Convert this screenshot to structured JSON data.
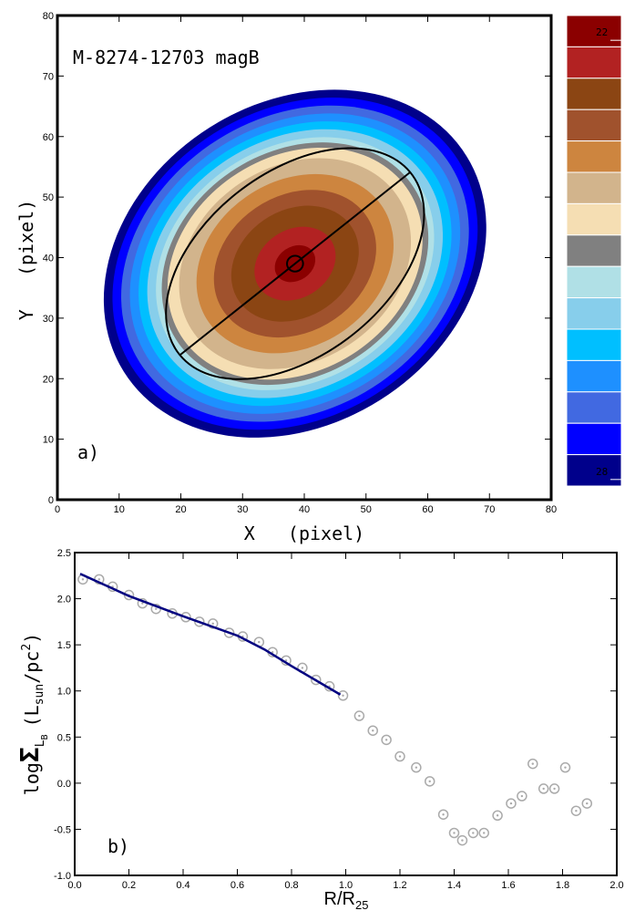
{
  "chart_data": [
    {
      "type": "image",
      "title": "M-8274-12703   magB",
      "annotation": "a)",
      "xlabel": "X   (pixel)",
      "ylabel": "Y   (pixel)",
      "xlim": [
        0,
        80
      ],
      "ylim": [
        0,
        80
      ],
      "xticks": [
        0,
        10,
        20,
        30,
        40,
        50,
        60,
        70,
        80
      ],
      "yticks": [
        0,
        10,
        20,
        30,
        40,
        50,
        60,
        70,
        80
      ],
      "colorbar": {
        "colors": [
          "#8b0000",
          "#b22222",
          "#8b4513",
          "#a0522d",
          "#cd853f",
          "#d2b48c",
          "#f5deb3",
          "#808080",
          "#b0e0e6",
          "#87ceeb",
          "#00bfff",
          "#1e90ff",
          "#4169e1",
          "#0000ff",
          "#00008b"
        ],
        "clim": [
          21.786,
          28.214
        ],
        "ticks": [
          22,
          28
        ]
      },
      "isophotes": {
        "center": [
          38.5,
          39
        ],
        "angle": 35,
        "axis_ratio": 0.8,
        "a": [
          3.5,
          7,
          11,
          14,
          17,
          20,
          22,
          23,
          24,
          25.5,
          27,
          28.5,
          30,
          31.5,
          33
        ]
      },
      "ellipse": {
        "center": [
          38.5,
          39
        ],
        "a": 24,
        "b": 15,
        "angle": 39,
        "marker_radius": 1.3
      }
    },
    {
      "type": "scatter",
      "annotation": "b)",
      "xlabel": [
        "R/R",
        "25"
      ],
      "ylabel": [
        "log",
        "Σ",
        "L",
        "B",
        "(L",
        "sun",
        "/pc",
        "2",
        ")"
      ],
      "xlim": [
        0,
        2.0
      ],
      "ylim": [
        -1.0,
        2.5
      ],
      "xticks": [
        {
          "value": 0,
          "label": "0.0"
        },
        0.2,
        0.4,
        0.6,
        0.8,
        {
          "value": 1,
          "label": "1.0"
        },
        1.2,
        1.4,
        1.6,
        1.8,
        {
          "value": 2,
          "label": "2.0"
        }
      ],
      "yticks": [
        {
          "value": -1,
          "label": "-1.0"
        },
        -0.5,
        {
          "value": 0,
          "label": "0.0"
        },
        0.5,
        {
          "value": 1,
          "label": "1.0"
        },
        1.5,
        {
          "value": 2,
          "label": "2.0"
        },
        2.5
      ],
      "series": [
        {
          "color": "#aaaaaa",
          "x": [
            0.03,
            0.09,
            0.14,
            0.2,
            0.25,
            0.3,
            0.36,
            0.41,
            0.46,
            0.51,
            0.57,
            0.62,
            0.68,
            0.73,
            0.78,
            0.84,
            0.89,
            0.94,
            0.99,
            1.05,
            1.1,
            1.15,
            1.2,
            1.26,
            1.31,
            1.36,
            1.4,
            1.43,
            1.47,
            1.51,
            1.56,
            1.61,
            1.65,
            1.69,
            1.73,
            1.77,
            1.81,
            1.85,
            1.89
          ],
          "values": [
            2.21,
            2.21,
            2.13,
            2.04,
            1.95,
            1.89,
            1.84,
            1.8,
            1.75,
            1.73,
            1.63,
            1.59,
            1.53,
            1.42,
            1.33,
            1.25,
            1.12,
            1.05,
            0.95,
            0.73,
            0.57,
            0.47,
            0.29,
            0.17,
            0.02,
            -0.34,
            -0.54,
            -0.62,
            -0.54,
            -0.54,
            -0.35,
            -0.22,
            -0.14,
            0.21,
            -0.06,
            -0.06,
            0.17,
            -0.3,
            -0.22
          ]
        },
        {
          "color": "#000080",
          "line": true,
          "x": [
            0.02,
            0.2,
            0.4,
            0.6,
            0.7,
            0.8,
            0.98
          ],
          "values": [
            2.27,
            2.03,
            1.81,
            1.6,
            1.45,
            1.27,
            0.96
          ]
        }
      ]
    }
  ]
}
